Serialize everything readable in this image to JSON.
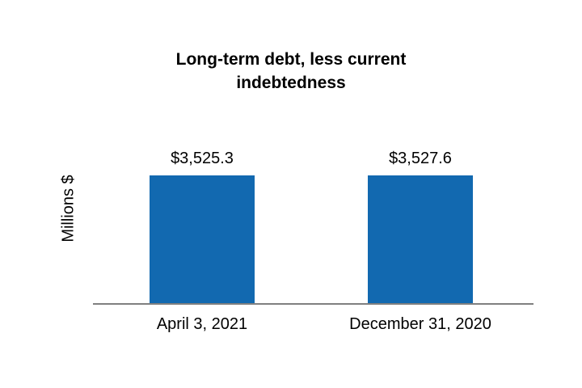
{
  "chart_data": {
    "type": "bar",
    "title": "Long-term debt, less current indebtedness",
    "title_lines": [
      "Long-term debt, less current",
      "indebtedness"
    ],
    "ylabel": "Millions $",
    "xlabel": "",
    "categories": [
      "April 3, 2021",
      "December 31, 2020"
    ],
    "values": [
      3525.3,
      3527.6
    ],
    "value_labels": [
      "$3,525.3",
      "$3,527.6"
    ],
    "ylim": [
      0,
      3900
    ],
    "bar_color": "#1269B0",
    "axis_color": "#808080",
    "grid": false,
    "legend": "none"
  }
}
